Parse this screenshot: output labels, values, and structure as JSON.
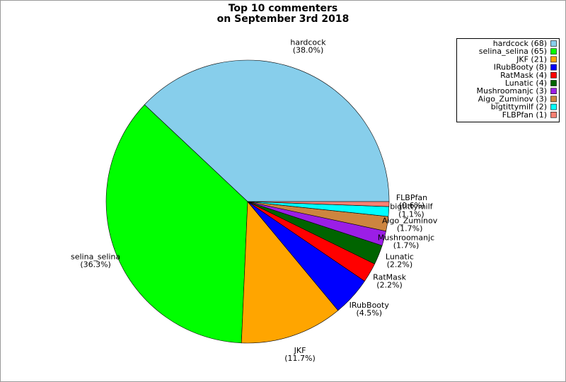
{
  "chart_data": {
    "type": "pie",
    "title": "Top 10 commenters",
    "subtitle": "on September 3rd 2018",
    "categories": [
      "hardcock",
      "selina_selina",
      "JKF",
      "IRubBooty",
      "RatMask",
      "Lunatic",
      "Mushroomanjc",
      "Aigo_Zuminov",
      "bigtittymilf",
      "FLBPfan"
    ],
    "values": [
      68,
      65,
      21,
      8,
      4,
      4,
      3,
      3,
      2,
      1
    ],
    "slice_labels": [
      "(38.0%)",
      "(36.3%)",
      "(11.7%)",
      "(4.5%)",
      "(2.2%)",
      "(2.2%)",
      "(1.7%)",
      "(1.7%)",
      "(1.1%)",
      "(0.6%)"
    ],
    "legend_labels": [
      "hardcock (68)",
      "selina_selina (65)",
      "JKF (21)",
      "IRubBooty (8)",
      "RatMask (4)",
      "Lunatic (4)",
      "Mushroomanjc (3)",
      "Aigo_Zuminov (3)",
      "bigtittymilf (2)",
      "FLBPfan (1)"
    ],
    "colors": [
      "#87ceeb",
      "#00ff00",
      "#ffa500",
      "#0000ff",
      "#ff0000",
      "#006400",
      "#9b1ee6",
      "#cd853f",
      "#00ffff",
      "#fa8072"
    ],
    "legend_position": "top-right"
  }
}
